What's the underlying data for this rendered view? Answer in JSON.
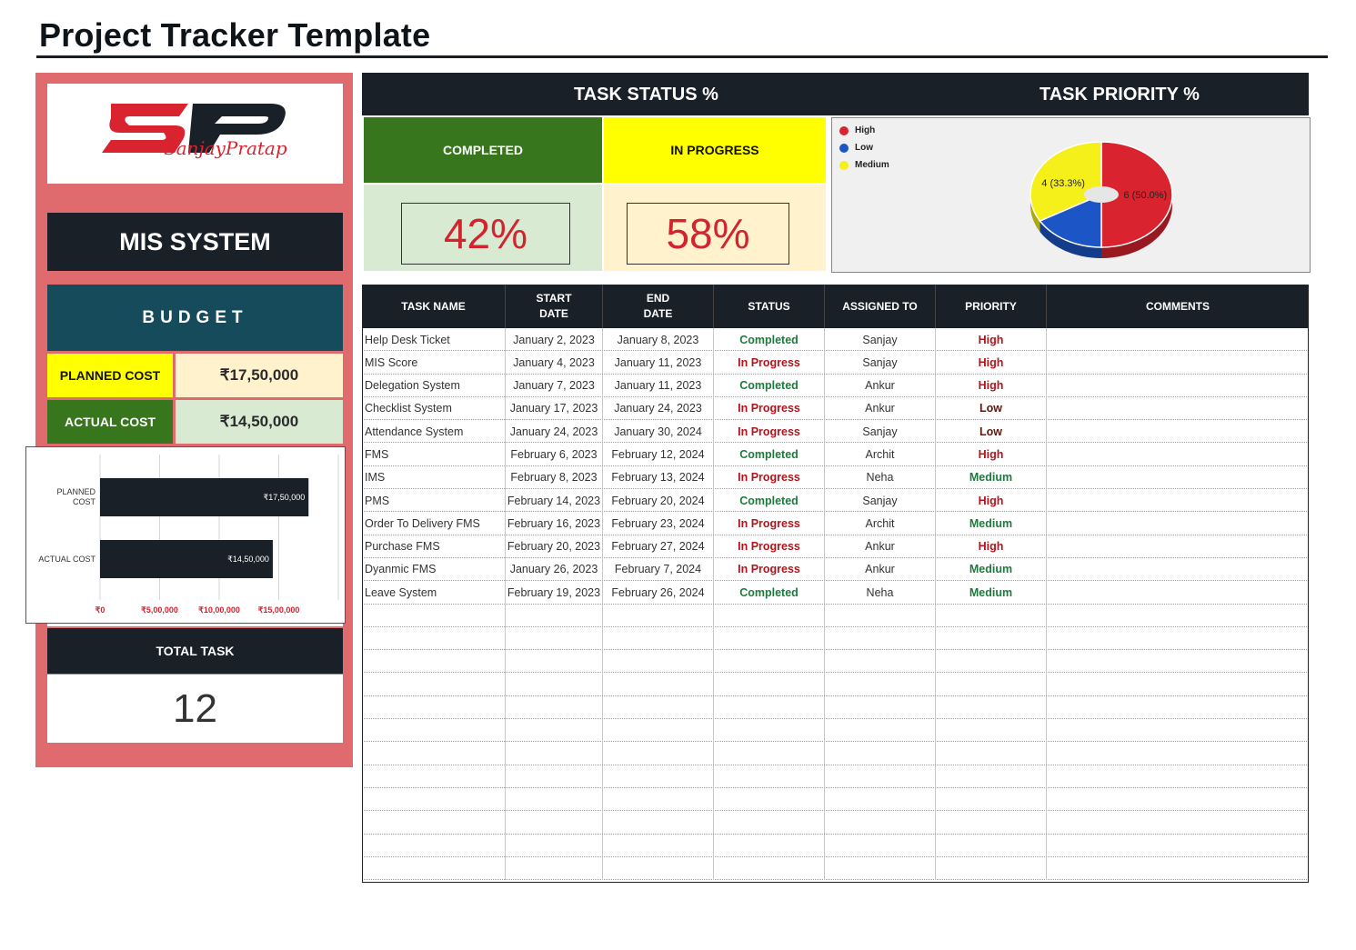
{
  "page": {
    "title": "Project Tracker Template"
  },
  "logo": {
    "initials": "SP",
    "script_text": "SanjayPratap"
  },
  "left": {
    "system_name": "MIS SYSTEM",
    "budget_label": "BUDGET",
    "planned_cost_label": "PLANNED COST",
    "planned_cost_value": "₹17,50,000",
    "actual_cost_label": "ACTUAL COST",
    "actual_cost_value": "₹14,50,000",
    "total_task_label": "TOTAL TASK",
    "total_task_value": "12"
  },
  "header": {
    "task_status": "TASK STATUS %",
    "task_priority": "TASK PRIORITY %"
  },
  "status": {
    "completed_label": "COMPLETED",
    "completed_pct": "42%",
    "in_progress_label": "IN PROGRESS",
    "in_progress_pct": "58%"
  },
  "chart_data": [
    {
      "type": "bar",
      "orientation": "horizontal",
      "categories": [
        "PLANNED COST",
        "ACTUAL COST"
      ],
      "values": [
        1750000,
        1450000
      ],
      "data_labels": [
        "₹17,50,000",
        "₹14,50,000"
      ],
      "x_ticks": [
        "₹0",
        "₹5,00,000",
        "₹10,00,000",
        "₹15,00,000"
      ],
      "xlim": [
        0,
        2000000
      ],
      "bar_color": "#1a2028",
      "grid": true
    },
    {
      "type": "pie",
      "style": "3d donut",
      "labels": [
        "High",
        "Low",
        "Medium"
      ],
      "values": [
        6,
        2,
        4
      ],
      "data_labels": [
        "6 (50.0%)",
        "",
        "4 (33.3%)"
      ],
      "colors": [
        "#d9232e",
        "#1c56c6",
        "#f5f01a"
      ],
      "legend": "top-left"
    }
  ],
  "table": {
    "headers": [
      {
        "line1": "TASK NAME",
        "line2": ""
      },
      {
        "line1": "START",
        "line2": "DATE"
      },
      {
        "line1": "END",
        "line2": "DATE"
      },
      {
        "line1": "STATUS",
        "line2": ""
      },
      {
        "line1": "ASSIGNED TO",
        "line2": ""
      },
      {
        "line1": "PRIORITY",
        "line2": ""
      },
      {
        "line1": "COMMENTS",
        "line2": ""
      }
    ],
    "rows": [
      {
        "name": "Help Desk Ticket",
        "start": "January 2, 2023",
        "end": "January 8, 2023",
        "status": "Completed",
        "assigned": "Sanjay",
        "priority": "High",
        "comments": ""
      },
      {
        "name": "MIS Score",
        "start": "January 4, 2023",
        "end": "January 11, 2023",
        "status": "In Progress",
        "assigned": "Sanjay",
        "priority": "High",
        "comments": ""
      },
      {
        "name": "Delegation System",
        "start": "January 7, 2023",
        "end": "January 11, 2023",
        "status": "Completed",
        "assigned": "Ankur",
        "priority": "High",
        "comments": ""
      },
      {
        "name": "Checklist System",
        "start": "January 17, 2023",
        "end": "January 24, 2023",
        "status": "In Progress",
        "assigned": "Ankur",
        "priority": "Low",
        "comments": ""
      },
      {
        "name": "Attendance System",
        "start": "January 24, 2023",
        "end": "January 30, 2024",
        "status": "In Progress",
        "assigned": "Sanjay",
        "priority": "Low",
        "comments": ""
      },
      {
        "name": "FMS",
        "start": "February 6, 2023",
        "end": "February 12, 2024",
        "status": "Completed",
        "assigned": "Archit",
        "priority": "High",
        "comments": ""
      },
      {
        "name": "IMS",
        "start": "February 8, 2023",
        "end": "February 13, 2024",
        "status": "In Progress",
        "assigned": "Neha",
        "priority": "Medium",
        "comments": ""
      },
      {
        "name": "PMS",
        "start": "February 14, 2023",
        "end": "February 20, 2024",
        "status": "Completed",
        "assigned": "Sanjay",
        "priority": "High",
        "comments": ""
      },
      {
        "name": "Order To Delivery FMS",
        "start": "February 16, 2023",
        "end": "February 23, 2024",
        "status": "In Progress",
        "assigned": "Archit",
        "priority": "Medium",
        "comments": ""
      },
      {
        "name": "Purchase FMS",
        "start": "February 20, 2023",
        "end": "February 27, 2024",
        "status": "In Progress",
        "assigned": "Ankur",
        "priority": "High",
        "comments": ""
      },
      {
        "name": "Dyanmic FMS",
        "start": "January 26, 2023",
        "end": "February 7, 2024",
        "status": "In Progress",
        "assigned": "Ankur",
        "priority": "Medium",
        "comments": ""
      },
      {
        "name": "Leave System",
        "start": "February 19, 2023",
        "end": "February 26, 2024",
        "status": "Completed",
        "assigned": "Neha",
        "priority": "Medium",
        "comments": ""
      }
    ],
    "colors": {
      "completed": "#1e7a3c",
      "in_progress": "#b3141c",
      "high": "#b3141c",
      "medium": "#1e7a3c",
      "low": "#5a1a10"
    }
  }
}
